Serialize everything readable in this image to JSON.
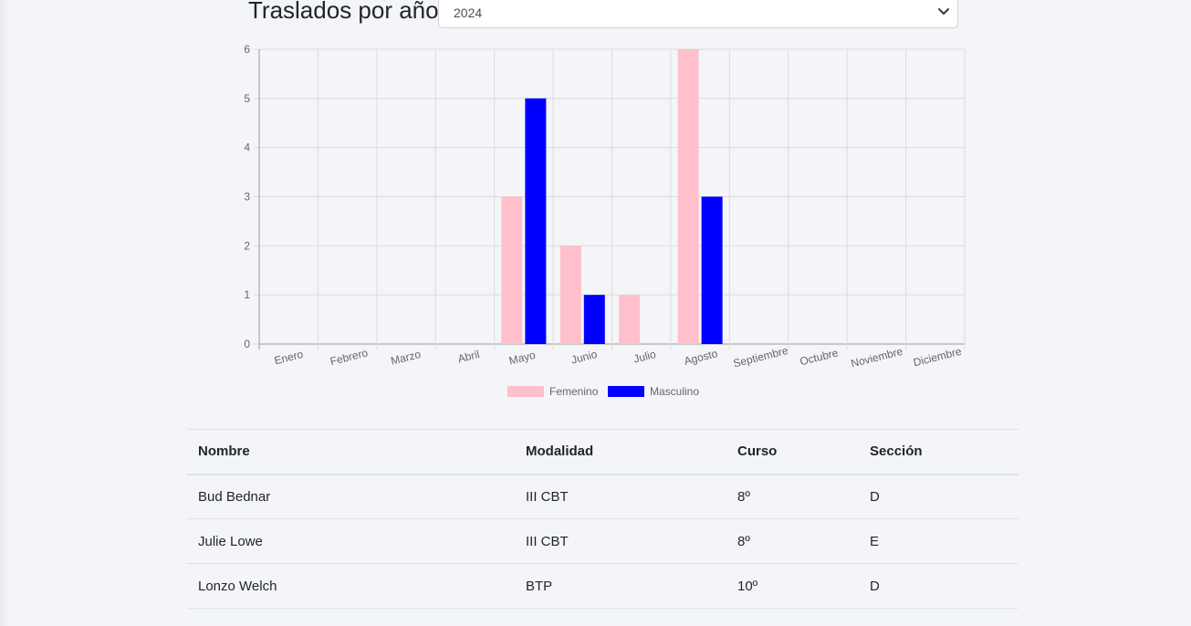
{
  "header": {
    "title": "Traslados por año",
    "year_select": {
      "value": "2024"
    }
  },
  "chart_data": {
    "type": "bar",
    "categories": [
      "Enero",
      "Febrero",
      "Marzo",
      "Abril",
      "Mayo",
      "Junio",
      "Julio",
      "Agosto",
      "Septiembre",
      "Octubre",
      "Noviembre",
      "Diciembre"
    ],
    "series": [
      {
        "name": "Femenino",
        "color": "#ffc0cb",
        "values": [
          0,
          0,
          0,
          0,
          3,
          2,
          1,
          6,
          0,
          0,
          0,
          0
        ]
      },
      {
        "name": "Masculino",
        "color": "#0000ff",
        "values": [
          0,
          0,
          0,
          0,
          5,
          1,
          0,
          3,
          0,
          0,
          0,
          0
        ]
      }
    ],
    "yticks": [
      "0",
      "1",
      "2",
      "3",
      "4",
      "5",
      "6"
    ],
    "ylim": [
      0,
      6
    ],
    "grid": true,
    "legend_position": "bottom"
  },
  "table": {
    "columns": [
      "Nombre",
      "Modalidad",
      "Curso",
      "Sección"
    ],
    "rows": [
      [
        "Bud Bednar",
        "III CBT",
        "8º",
        "D"
      ],
      [
        "Julie Lowe",
        "III CBT",
        "8º",
        "E"
      ],
      [
        "Lonzo Welch",
        "BTP",
        "10º",
        "D"
      ]
    ]
  }
}
